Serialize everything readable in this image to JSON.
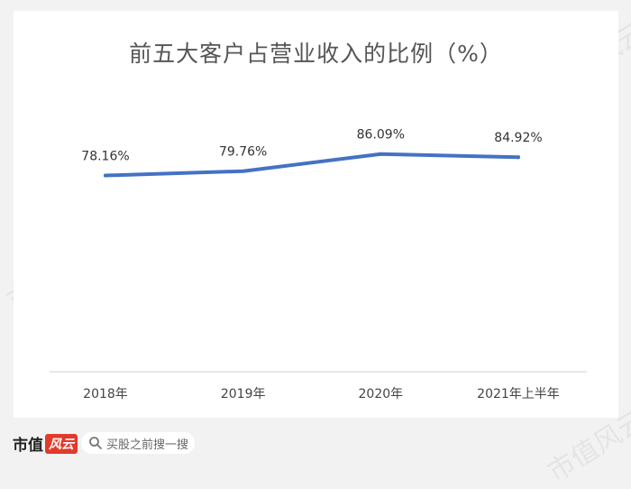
{
  "watermark": "市值风云",
  "chart_data": {
    "type": "line",
    "title": "前五大客户占营业收入的比例（%）",
    "categories": [
      "2018年",
      "2019年",
      "2020年",
      "2021年上半年"
    ],
    "series": [
      {
        "values": [
          78.16,
          79.76,
          86.09,
          84.92
        ]
      }
    ],
    "data_labels": [
      "78.16%",
      "79.76%",
      "86.09%",
      "84.92%"
    ],
    "ylim": [
      0,
      100
    ],
    "line_color": "#4472c4",
    "grid": false,
    "legend": "none"
  },
  "footer": {
    "brand": "市值",
    "brand_logo": "风云",
    "search_icon": "search-icon",
    "search_text": "买股之前搜一搜"
  }
}
